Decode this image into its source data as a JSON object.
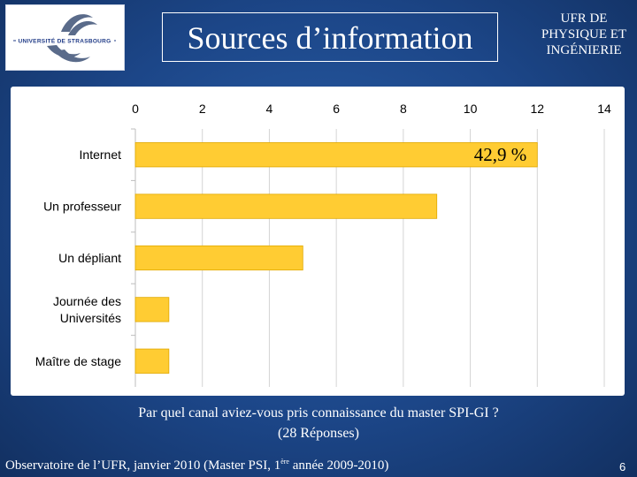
{
  "header": {
    "logo_text": "UNIVERSITÉ DE STRASBOURG",
    "title": "Sources d’information",
    "ufr_line1": "UFR DE",
    "ufr_line2": "PHYSIQUE ET",
    "ufr_line3": "INGÉNIERIE"
  },
  "chart_data": {
    "type": "bar",
    "orientation": "horizontal",
    "categories": [
      "Internet",
      "Un professeur",
      "Un dépliant",
      "Journée des Universités",
      "Maître de stage"
    ],
    "values": [
      12,
      9,
      5,
      1,
      1
    ],
    "x_ticks": [
      0,
      2,
      4,
      6,
      8,
      10,
      12,
      14
    ],
    "xlim": [
      0,
      14
    ],
    "x_axis_position": "top",
    "grid": true,
    "bar_color": "#ffcc33",
    "annotation": "42,9 %"
  },
  "caption": {
    "line1": "Par quel canal aviez-vous pris connaissance du master SPI-GI ?",
    "line2": "(28 Réponses)"
  },
  "footer": {
    "text_before": "Observatoire de l’UFR, janvier 2010 (Master PSI, 1",
    "superscript": "ère",
    "text_after": " année 2009-2010)",
    "page_number": "6"
  }
}
